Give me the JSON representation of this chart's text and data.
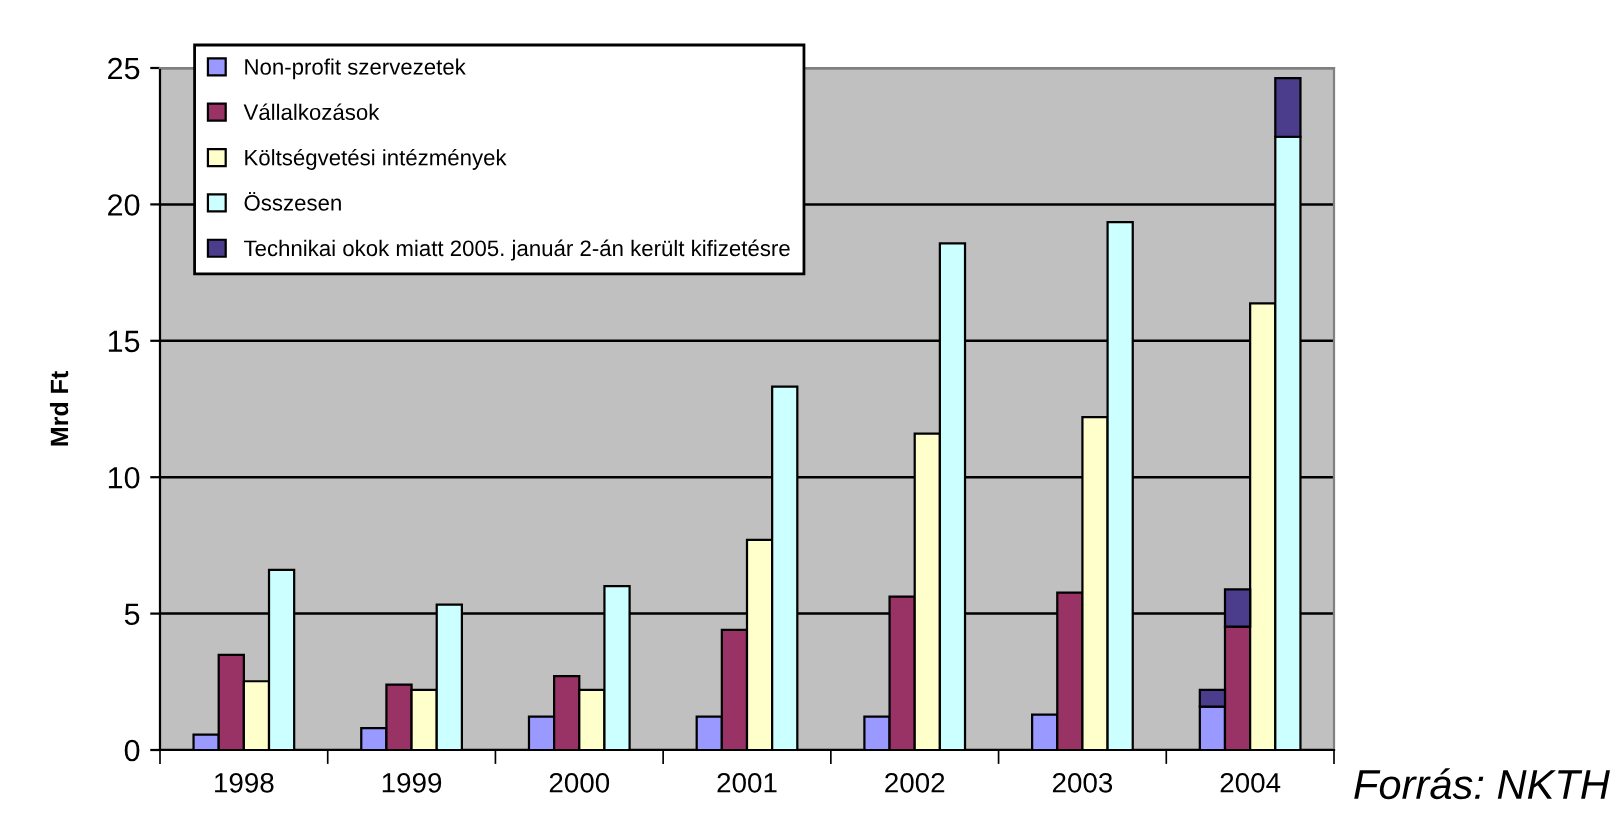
{
  "chart_data": {
    "type": "bar",
    "ylabel": "Mrd Ft",
    "categories": [
      "1998",
      "1999",
      "2000",
      "2001",
      "2002",
      "2003",
      "2004"
    ],
    "series": [
      {
        "name": "Non-profit szervezetek",
        "color": "#9999ff",
        "values": [
          0.56,
          0.8,
          1.22,
          1.22,
          1.22,
          1.3,
          1.59
        ]
      },
      {
        "name": "Vállalkozások",
        "color": "#993366",
        "values": [
          3.49,
          2.4,
          2.71,
          4.4,
          5.62,
          5.77,
          4.52
        ]
      },
      {
        "name": "Költségvetési intézmények",
        "color": "#ffffcc",
        "values": [
          2.52,
          2.2,
          2.2,
          7.7,
          11.6,
          12.2,
          16.37
        ]
      },
      {
        "name": "Összesen",
        "color": "#ccffff",
        "values": [
          6.6,
          5.33,
          6.01,
          13.32,
          18.57,
          19.35,
          22.48
        ]
      },
      {
        "name": "Technikai okok miatt 2005. január 2-án került kifizetésre",
        "color": "#4b3c8c",
        "base": [
          null,
          null,
          null,
          null,
          null,
          null,
          1.59
        ],
        "values": [
          null,
          null,
          null,
          null,
          null,
          null,
          0.61
        ]
      },
      {
        "color": "#4b3c8c",
        "base": [
          null,
          null,
          null,
          null,
          null,
          null,
          4.52
        ],
        "values": [
          null,
          null,
          null,
          null,
          null,
          null,
          1.37
        ]
      },
      {
        "color": "#4b3c8c",
        "base": [
          null,
          null,
          null,
          null,
          null,
          null,
          22.48
        ],
        "values": [
          null,
          null,
          null,
          null,
          null,
          null,
          2.15
        ]
      }
    ],
    "ylim": [
      0,
      25
    ],
    "yticks": [
      0,
      5,
      10,
      15,
      20,
      25
    ],
    "grid": "y",
    "legend": "top left",
    "annotations": [
      "Forrás: NKTH"
    ]
  }
}
